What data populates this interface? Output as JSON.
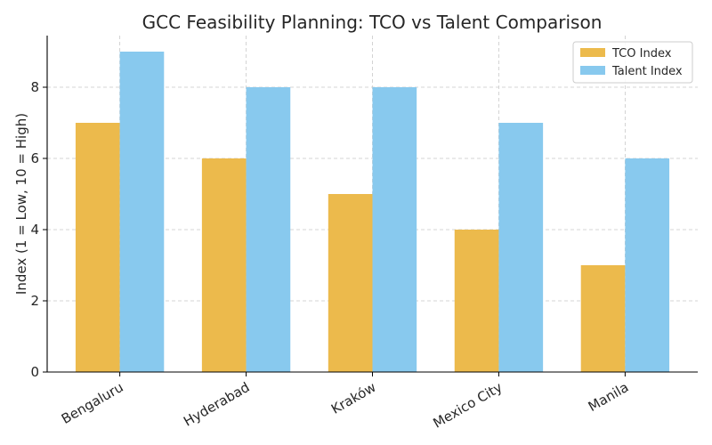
{
  "chart_data": {
    "type": "bar",
    "title": "GCC Feasibility Planning: TCO vs Talent Comparison",
    "xlabel": "",
    "ylabel": "Index (1 = Low, 10 = High)",
    "categories": [
      "Bengaluru",
      "Hyderabad",
      "Kraków",
      "Mexico City",
      "Manila"
    ],
    "series": [
      {
        "name": "TCO Index",
        "values": [
          7,
          6,
          5,
          4,
          3
        ],
        "color": "#ECBA4C"
      },
      {
        "name": "Talent Index",
        "values": [
          9,
          8,
          8,
          7,
          6
        ],
        "color": "#88C9EE"
      }
    ],
    "ylim": [
      0,
      9.45
    ],
    "yticks": [
      0,
      2,
      4,
      6,
      8
    ],
    "grid": true,
    "legend_position": "top-right"
  }
}
